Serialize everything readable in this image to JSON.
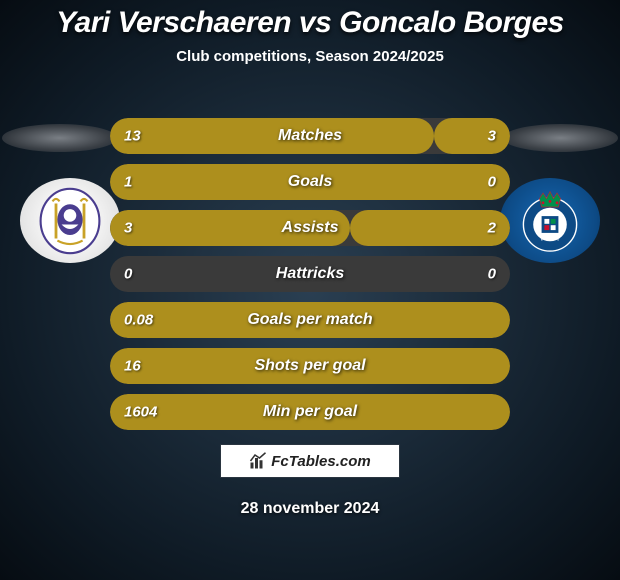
{
  "header": {
    "title": "Yari Verschaeren vs Goncalo Borges",
    "title_fontsize": 30,
    "title_color": "#ffffff",
    "subtitle": "Club competitions, Season 2024/2025",
    "subtitle_fontsize": 15,
    "subtitle_color": "#ffffff"
  },
  "background": {
    "gradient_center": "#2a3f52",
    "gradient_outer": "#0f1b26",
    "gradient_edge": "#060c12"
  },
  "shadow_ellipse": {
    "color_inner": "#7a7f85",
    "color_outer": "#3a3f45"
  },
  "crests": {
    "left": {
      "bg": "#ffffff",
      "name": "anderlecht-crest"
    },
    "right": {
      "bg": "#1568b3",
      "name": "porto-crest"
    }
  },
  "stats": {
    "row_bg": "#3a3a3a",
    "bar_color": "#ad8f1d",
    "value_color": "#ffffff",
    "label_color": "#ffffff",
    "value_fontsize": 15,
    "label_fontsize": 16,
    "rows": [
      {
        "label": "Matches",
        "left": "13",
        "right": "3",
        "left_pct": 81,
        "right_pct": 19
      },
      {
        "label": "Goals",
        "left": "1",
        "right": "0",
        "left_pct": 100,
        "right_pct": 0
      },
      {
        "label": "Assists",
        "left": "3",
        "right": "2",
        "left_pct": 60,
        "right_pct": 40
      },
      {
        "label": "Hattricks",
        "left": "0",
        "right": "0",
        "left_pct": 0,
        "right_pct": 0
      },
      {
        "label": "Goals per match",
        "left": "0.08",
        "right": "",
        "left_pct": 100,
        "right_pct": 0
      },
      {
        "label": "Shots per goal",
        "left": "16",
        "right": "",
        "left_pct": 100,
        "right_pct": 0
      },
      {
        "label": "Min per goal",
        "left": "1604",
        "right": "",
        "left_pct": 100,
        "right_pct": 0
      }
    ]
  },
  "brand": {
    "text": "FcTables.com",
    "box_bg": "#ffffff",
    "text_color": "#222222",
    "icon_name": "bar-chart-icon"
  },
  "footer": {
    "date": "28 november 2024",
    "date_fontsize": 16,
    "date_color": "#ffffff"
  }
}
